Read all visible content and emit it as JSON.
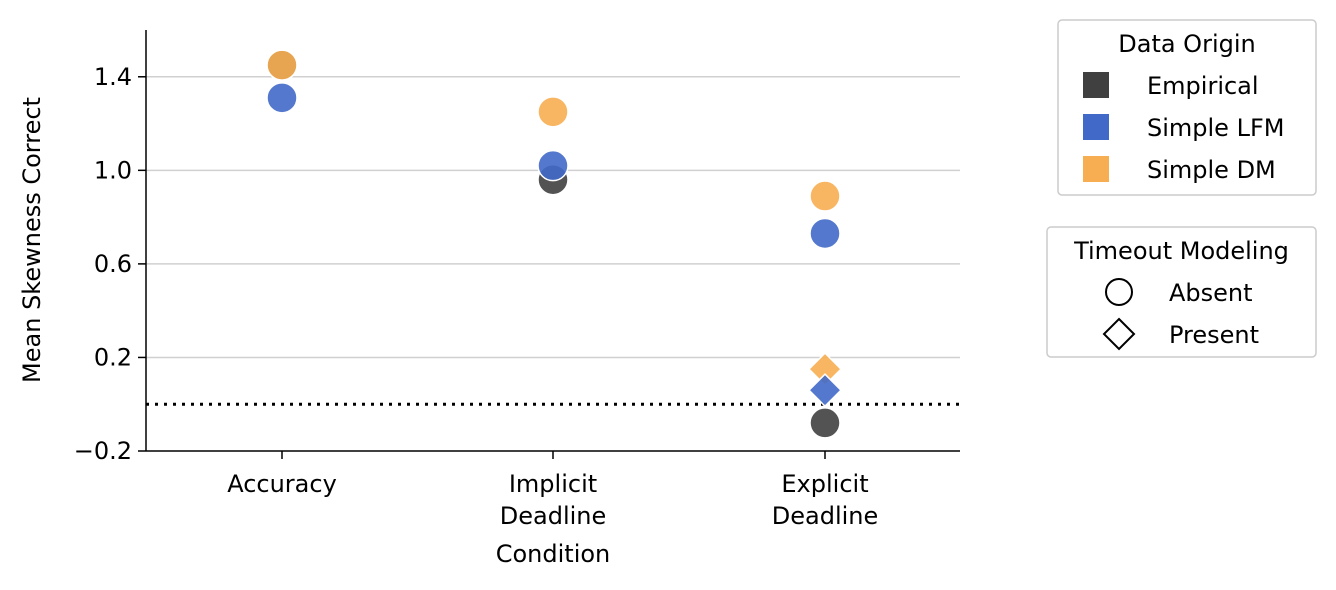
{
  "chart_data": {
    "type": "scatter",
    "xlabel": "Condition",
    "ylabel": "Mean Skewness Correct",
    "categories": [
      {
        "lines": [
          "Accuracy"
        ]
      },
      {
        "lines": [
          "Implicit",
          "Deadline"
        ]
      },
      {
        "lines": [
          "Explicit",
          "Deadline"
        ]
      }
    ],
    "ylim": [
      -0.2,
      1.6
    ],
    "yticks": [
      -0.2,
      0.2,
      0.6,
      1.0,
      1.4
    ],
    "ytick_labels": [
      "−0.2",
      "0.2",
      "0.6",
      "1.0",
      "1.4"
    ],
    "grid": true,
    "reference_line": {
      "y": 0,
      "style": "dotted",
      "color": "#000000"
    },
    "colors": {
      "Empirical": "#404040",
      "Simple LFM": "#4169c8",
      "Simple DM": "#f7ae52"
    },
    "points": [
      {
        "category": 0,
        "origin": "Empirical",
        "timeout": "Absent",
        "y": 1.45
      },
      {
        "category": 0,
        "origin": "Simple DM",
        "timeout": "Absent",
        "y": 1.45
      },
      {
        "category": 0,
        "origin": "Simple LFM",
        "timeout": "Absent",
        "y": 1.31
      },
      {
        "category": 1,
        "origin": "Simple DM",
        "timeout": "Absent",
        "y": 1.25
      },
      {
        "category": 1,
        "origin": "Empirical",
        "timeout": "Absent",
        "y": 0.96
      },
      {
        "category": 1,
        "origin": "Simple LFM",
        "timeout": "Absent",
        "y": 1.02
      },
      {
        "category": 2,
        "origin": "Simple DM",
        "timeout": "Absent",
        "y": 0.89
      },
      {
        "category": 2,
        "origin": "Simple LFM",
        "timeout": "Absent",
        "y": 0.73
      },
      {
        "category": 2,
        "origin": "Simple DM",
        "timeout": "Present",
        "y": 0.15
      },
      {
        "category": 2,
        "origin": "Simple LFM",
        "timeout": "Present",
        "y": 0.06
      },
      {
        "category": 2,
        "origin": "Empirical",
        "timeout": "Absent",
        "y": -0.08
      }
    ],
    "legends": [
      {
        "title": "Data Origin",
        "placement": "upper-right-outside",
        "entries": [
          {
            "label": "Empirical",
            "marker": "square",
            "color": "#404040"
          },
          {
            "label": "Simple LFM",
            "marker": "square",
            "color": "#4169c8"
          },
          {
            "label": "Simple DM",
            "marker": "square",
            "color": "#f7ae52"
          }
        ]
      },
      {
        "title": "Timeout Modeling",
        "placement": "right-outside",
        "entries": [
          {
            "label": "Absent",
            "marker": "circle"
          },
          {
            "label": "Present",
            "marker": "diamond"
          }
        ]
      }
    ]
  }
}
